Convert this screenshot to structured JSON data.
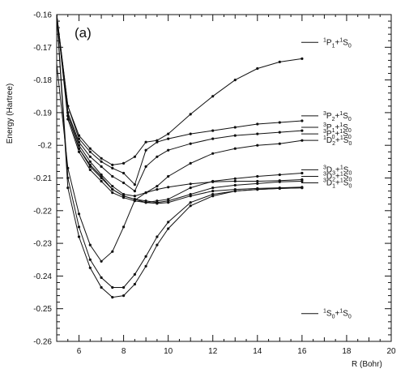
{
  "chart_data": {
    "type": "line",
    "panel_label": "(a)",
    "xlabel": "R (Bohr)",
    "ylabel": "Energy (Hartree)",
    "xlim": [
      5,
      20
    ],
    "ylim": [
      -0.26,
      -0.16
    ],
    "xticks": [
      "6",
      "8",
      "10",
      "12",
      "14",
      "16",
      "18",
      "20"
    ],
    "yticks": [
      "-0.16",
      "-0.17",
      "-0.18",
      "-0.19",
      "-0.2",
      "-0.21",
      "-0.22",
      "-0.23",
      "-0.24",
      "-0.25",
      "-0.26"
    ],
    "grid": false,
    "series": [
      {
        "x": [
          5,
          5.5,
          6,
          6.5,
          7,
          7.5,
          8,
          8.5,
          9,
          9.5,
          10,
          11,
          12,
          13,
          14,
          15,
          16
        ],
        "y": [
          -0.16,
          -0.188,
          -0.197,
          -0.201,
          -0.204,
          -0.206,
          -0.2055,
          -0.2035,
          -0.199,
          -0.1985,
          -0.1965,
          -0.1905,
          -0.185,
          -0.18,
          -0.1765,
          -0.1745,
          -0.1735
        ]
      },
      {
        "x": [
          5,
          5.5,
          6,
          6.5,
          7,
          7.5,
          8,
          8.5,
          9,
          9.5,
          10,
          11,
          12,
          13,
          14,
          15,
          16
        ],
        "y": [
          -0.16,
          -0.188,
          -0.198,
          -0.202,
          -0.205,
          -0.207,
          -0.2085,
          -0.212,
          -0.2015,
          -0.199,
          -0.198,
          -0.1965,
          -0.1955,
          -0.1945,
          -0.1935,
          -0.193,
          -0.1925
        ]
      },
      {
        "x": [
          5,
          5.5,
          6,
          6.5,
          7,
          7.5,
          8,
          8.5,
          9,
          9.5,
          10,
          11,
          12,
          13,
          14,
          15,
          16
        ],
        "y": [
          -0.16,
          -0.19,
          -0.199,
          -0.2035,
          -0.2065,
          -0.2095,
          -0.2115,
          -0.214,
          -0.2065,
          -0.2035,
          -0.2015,
          -0.1995,
          -0.198,
          -0.197,
          -0.1965,
          -0.196,
          -0.1955
        ]
      },
      {
        "x": [
          5,
          5.5,
          6,
          6.5,
          7,
          7.5,
          8,
          8.5,
          9,
          9.5,
          10,
          11,
          12,
          13,
          14,
          15,
          16
        ],
        "y": [
          -0.16,
          -0.19,
          -0.2,
          -0.205,
          -0.209,
          -0.2125,
          -0.215,
          -0.2155,
          -0.2145,
          -0.2125,
          -0.2095,
          -0.2055,
          -0.2025,
          -0.201,
          -0.2,
          -0.1995,
          -0.1985
        ]
      },
      {
        "x": [
          5,
          5.5,
          6,
          6.5,
          7,
          7.5,
          8,
          8.5,
          9,
          9.5,
          10,
          11,
          12,
          13,
          14,
          15,
          16
        ],
        "y": [
          -0.16,
          -0.191,
          -0.201,
          -0.206,
          -0.2095,
          -0.2135,
          -0.2155,
          -0.2165,
          -0.2175,
          -0.217,
          -0.2165,
          -0.213,
          -0.211,
          -0.2102,
          -0.2095,
          -0.209,
          -0.2085
        ]
      },
      {
        "x": [
          5,
          5.5,
          6,
          6.5,
          7,
          7.5,
          8,
          8.5,
          9,
          9.5,
          10,
          11,
          12,
          13,
          14,
          15,
          16
        ],
        "y": [
          -0.16,
          -0.191,
          -0.201,
          -0.2065,
          -0.21,
          -0.2135,
          -0.2155,
          -0.2165,
          -0.217,
          -0.2175,
          -0.217,
          -0.215,
          -0.213,
          -0.2122,
          -0.2117,
          -0.2112,
          -0.211
        ]
      },
      {
        "x": [
          5,
          5.5,
          6,
          6.5,
          7,
          7.5,
          8,
          8.5,
          9,
          9.5,
          10,
          11,
          12,
          13,
          14,
          15,
          16
        ],
        "y": [
          -0.16,
          -0.192,
          -0.202,
          -0.2075,
          -0.211,
          -0.2145,
          -0.216,
          -0.217,
          -0.2175,
          -0.2178,
          -0.2175,
          -0.2155,
          -0.214,
          -0.2135,
          -0.2132,
          -0.213,
          -0.2128
        ]
      },
      {
        "x": [
          5,
          5.5,
          6,
          6.5,
          7,
          7.5,
          8,
          8.5,
          9,
          9.5,
          10,
          11,
          12,
          13,
          14,
          15,
          16
        ],
        "y": [
          -0.175,
          -0.207,
          -0.221,
          -0.2305,
          -0.2355,
          -0.2325,
          -0.225,
          -0.2168,
          -0.2145,
          -0.2135,
          -0.2128,
          -0.2118,
          -0.2112,
          -0.211,
          -0.211,
          -0.2108,
          -0.2105
        ]
      },
      {
        "x": [
          5,
          5.5,
          6,
          6.5,
          7,
          7.5,
          8,
          8.5,
          9,
          9.5,
          10,
          11,
          12,
          13,
          14,
          15,
          16
        ],
        "y": [
          -0.16,
          -0.21,
          -0.225,
          -0.235,
          -0.2405,
          -0.2435,
          -0.2435,
          -0.2395,
          -0.234,
          -0.228,
          -0.2235,
          -0.2175,
          -0.215,
          -0.214,
          -0.2135,
          -0.2132,
          -0.213
        ]
      },
      {
        "x": [
          5,
          5.5,
          6,
          6.5,
          7,
          7.5,
          8,
          8.5,
          9,
          9.5,
          10,
          11,
          12,
          13,
          14,
          15,
          16
        ],
        "y": [
          -0.16,
          -0.213,
          -0.228,
          -0.2375,
          -0.2435,
          -0.2465,
          -0.246,
          -0.2425,
          -0.237,
          -0.2305,
          -0.2255,
          -0.2185,
          -0.2155,
          -0.214,
          -0.2135,
          -0.2132,
          -0.213
        ]
      }
    ],
    "asymptotes": [
      {
        "y": -0.1685,
        "main": "P",
        "sub1": "1",
        "sup1": "1",
        "sup2": "1",
        "end": "S",
        "sub2": "0"
      },
      {
        "y": -0.191,
        "main": "P",
        "sub1": "2",
        "sup1": "3",
        "sup2": "1",
        "end": "S",
        "sub2": "0"
      },
      {
        "y": -0.1945,
        "main": "P",
        "sub1": "1",
        "sup1": "3",
        "sup2": "1",
        "end": "S",
        "sub2": "0"
      },
      {
        "y": -0.1965,
        "main": "P",
        "sub1": "0",
        "sup1": "3",
        "sup2": "1",
        "end": "S",
        "sub2": "0"
      },
      {
        "y": -0.1985,
        "main": "D",
        "sub1": "2",
        "sup1": "1",
        "sup2": "1",
        "end": "S",
        "sub2": "0"
      },
      {
        "y": -0.2075,
        "main": "D",
        "sub1": "3",
        "sup1": "3",
        "sup2": "1",
        "end": "S",
        "sub2": "0"
      },
      {
        "y": -0.2095,
        "main": "D",
        "sub1": "2",
        "sup1": "3",
        "sup2": "1",
        "end": "S",
        "sub2": "0"
      },
      {
        "y": -0.2115,
        "main": "D",
        "sub1": "1",
        "sup1": "3",
        "sup2": "1",
        "end": "S",
        "sub2": "0"
      },
      {
        "y": -0.2515,
        "main": "S",
        "sub1": "0",
        "sup1": "1",
        "sup2": "1",
        "end": "S",
        "sub2": "0"
      }
    ]
  }
}
